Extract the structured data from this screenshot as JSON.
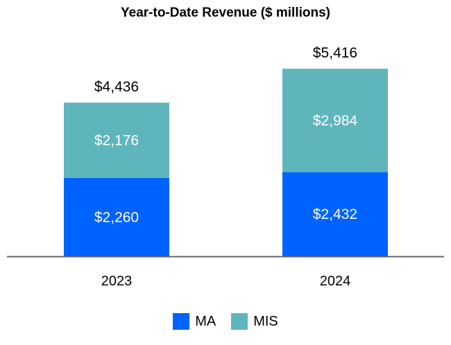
{
  "chart_data": {
    "type": "bar",
    "stacked": true,
    "title": "Year-to-Date Revenue ($ millions)",
    "xlabel": "",
    "ylabel": "",
    "categories": [
      "2023",
      "2024"
    ],
    "series": [
      {
        "name": "MA",
        "values": [
          2260,
          2432
        ],
        "labels": [
          "$2,260",
          "$2,432"
        ],
        "color": "#0062FF"
      },
      {
        "name": "MIS",
        "values": [
          2176,
          2984
        ],
        "labels": [
          "$2,176",
          "$2,984"
        ],
        "color": "#5EB6BC"
      }
    ],
    "totals": [
      4436,
      5416
    ],
    "total_labels": [
      "$4,436",
      "$5,416"
    ],
    "grid": false,
    "legend": "bottom"
  }
}
